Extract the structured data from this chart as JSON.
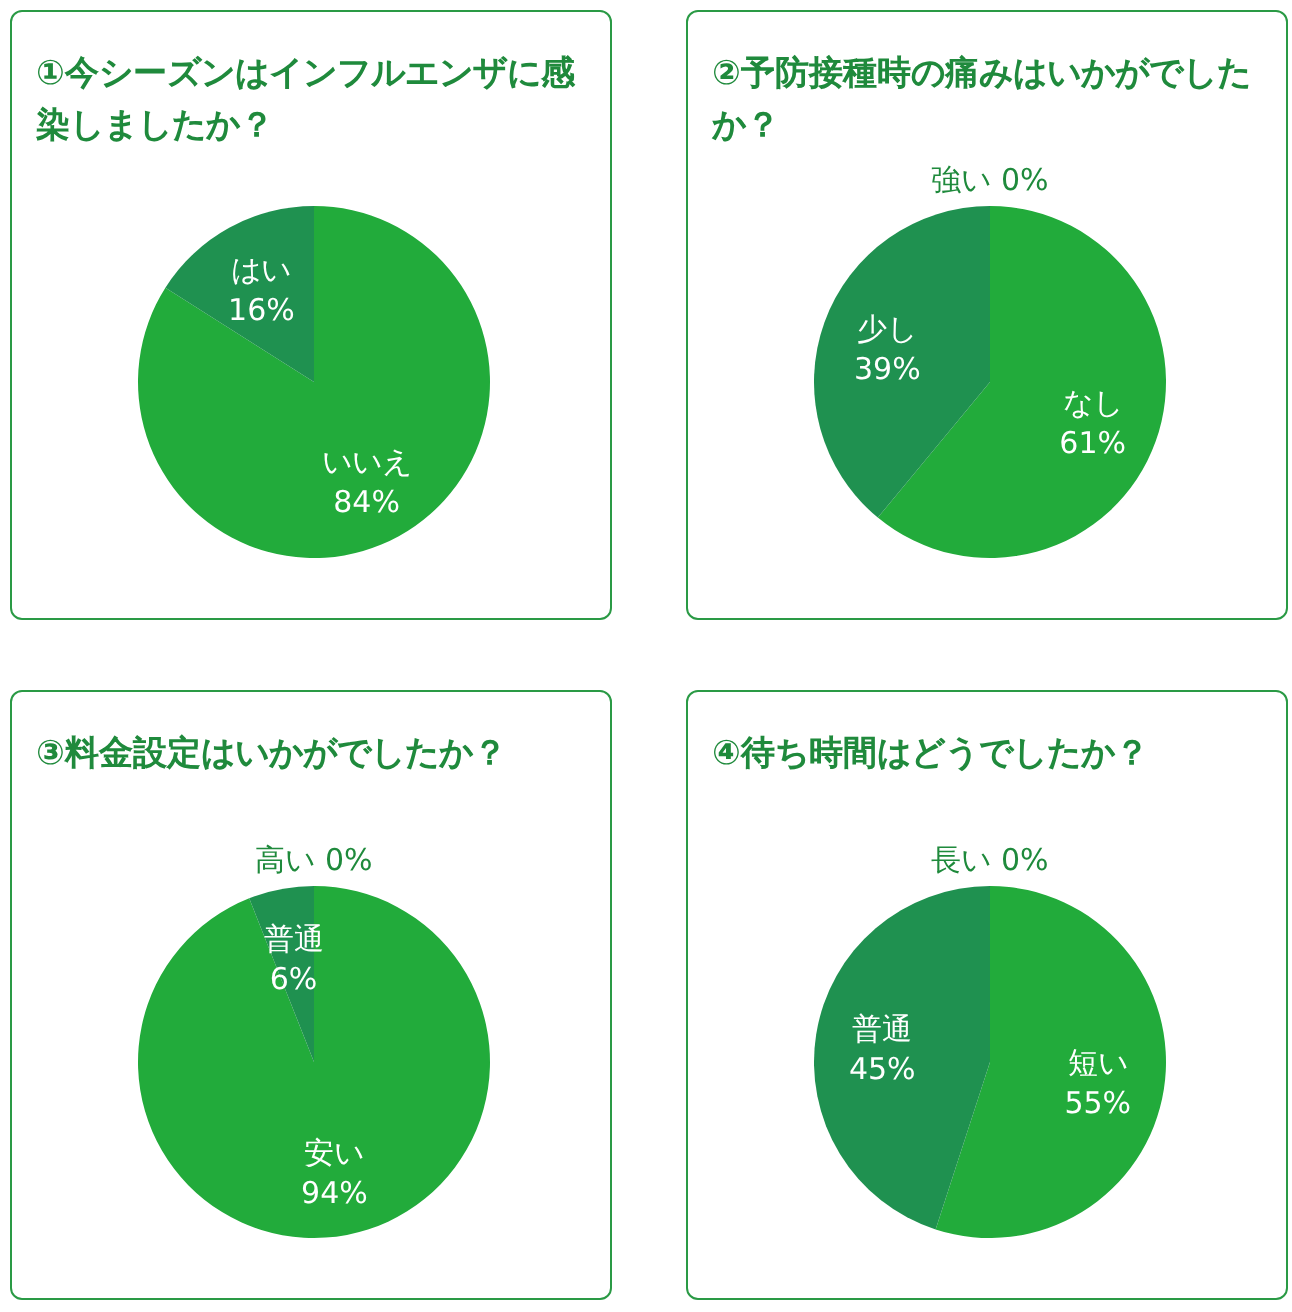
{
  "chart_data": [
    {
      "type": "pie",
      "title": "①今シーズンはインフルエンザに感染しましたか？",
      "categories": [
        "いいえ",
        "はい"
      ],
      "values": [
        84,
        16
      ],
      "value_labels": [
        "84%",
        "16%"
      ],
      "colors": [
        "#22ab3b",
        "#1f9150"
      ]
    },
    {
      "type": "pie",
      "title": "②予防接種時の痛みはいかがでしたか？",
      "categories": [
        "なし",
        "少し",
        "強い"
      ],
      "values": [
        61,
        39,
        0
      ],
      "value_labels": [
        "61%",
        "39%",
        "0%"
      ],
      "colors": [
        "#22ab3b",
        "#1f9150",
        "#1f9150"
      ]
    },
    {
      "type": "pie",
      "title": "③料金設定はいかがでしたか？",
      "categories": [
        "安い",
        "普通",
        "高い"
      ],
      "values": [
        94,
        6,
        0
      ],
      "value_labels": [
        "94%",
        "6%",
        "0%"
      ],
      "colors": [
        "#22ab3b",
        "#1f9150",
        "#1f9150"
      ]
    },
    {
      "type": "pie",
      "title": "④待ち時間はどうでしたか？",
      "categories": [
        "短い",
        "普通",
        "長い"
      ],
      "values": [
        55,
        45,
        0
      ],
      "value_labels": [
        "55%",
        "45%",
        "0%"
      ],
      "colors": [
        "#22ab3b",
        "#1f9150",
        "#1f9150"
      ]
    }
  ]
}
